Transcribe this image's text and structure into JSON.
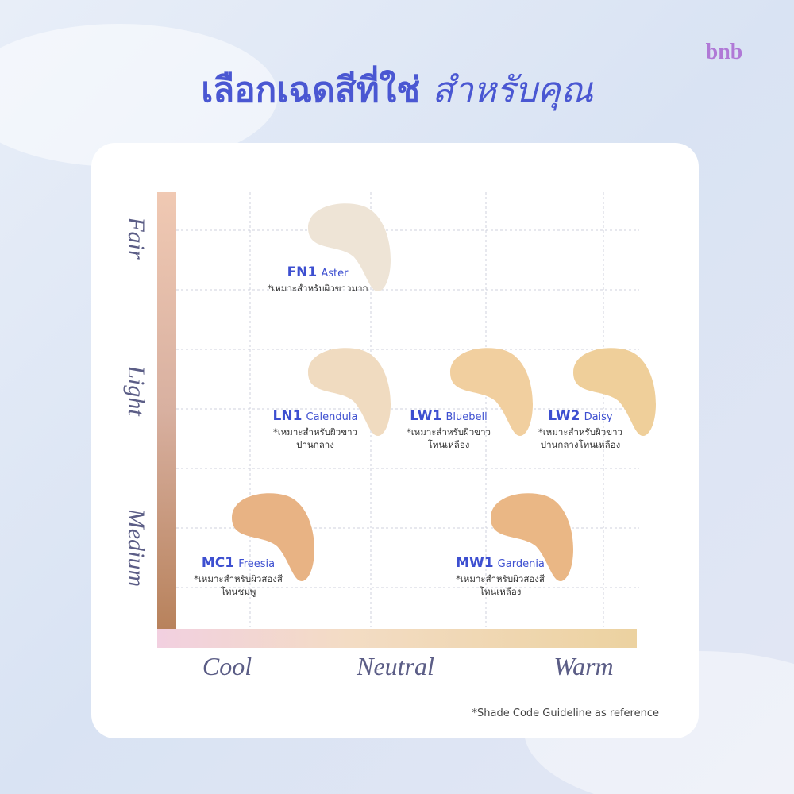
{
  "logo": "bnb",
  "header": {
    "title": "เลือกเฉดสีที่ใช่",
    "title_accent": "สำหรับคุณ"
  },
  "axes": {
    "y_labels": [
      "Fair",
      "Light",
      "Medium"
    ],
    "x_labels": [
      "Cool",
      "Neutral",
      "Warm"
    ]
  },
  "shades": [
    {
      "code": "FN1",
      "name": "Aster",
      "note": [
        "*เหมาะสำหรับผิวขาวมาก"
      ]
    },
    {
      "code": "LN1",
      "name": "Calendula",
      "note": [
        "*เหมาะสำหรับผิวขาว",
        "ปานกลาง"
      ]
    },
    {
      "code": "LW1",
      "name": "Bluebell",
      "note": [
        "*เหมาะสำหรับผิวขาว",
        "โทนเหลือง"
      ]
    },
    {
      "code": "LW2",
      "name": "Daisy",
      "note": [
        "*เหมาะสำหรับผิวขาว",
        "ปานกลางโทนเหลือง"
      ]
    },
    {
      "code": "MC1",
      "name": "Freesia",
      "note": [
        "*เหมาะสำหรับผิวสองสี",
        "โทนชมพู"
      ]
    },
    {
      "code": "MW1",
      "name": "Gardenia",
      "note": [
        "*เหมาะสำหรับผิวสองสี",
        "โทนเหลือง"
      ]
    }
  ],
  "footnote": "*Shade Code Guideline as reference"
}
